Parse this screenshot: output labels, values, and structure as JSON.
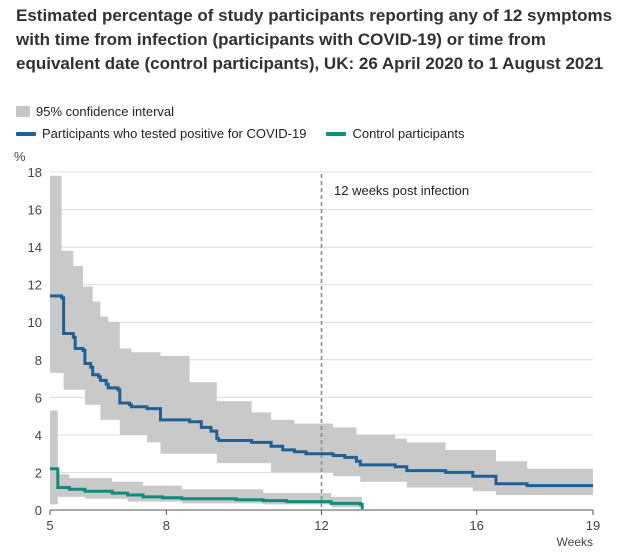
{
  "title": "Estimated percentage of study participants reporting any of 12 symptoms with time from infection (participants with COVID-19) or time from equivalent date (control participants), UK: 26 April 2020 to 1 August 2021",
  "colors": {
    "covid": "#206095",
    "control": "#118c7b",
    "ci": "#c6c6c6",
    "grid": "#dcdcdc",
    "ref": "#8c8c8c"
  },
  "chart_data": {
    "type": "line",
    "title": "Estimated percentage of study participants reporting any of 12 symptoms with time from infection (participants with COVID-19) or time from equivalent date (control participants), UK: 26 April 2020 to 1 August 2021",
    "ylabel": "%",
    "xlabel": "Weeks",
    "xlim": [
      5,
      19
    ],
    "ylim": [
      0,
      18
    ],
    "xticks": [
      5,
      8,
      12,
      16,
      19
    ],
    "yticks": [
      0,
      2,
      4,
      6,
      8,
      10,
      12,
      14,
      16,
      18
    ],
    "grid": true,
    "legend_position": "top-left",
    "legend": {
      "ci_label": "95% confidence interval",
      "covid_label": "Participants who tested positive for COVID-19",
      "control_label": "Control participants"
    },
    "annotation": {
      "x": 12,
      "text": "12 weeks post infection"
    },
    "series": [
      {
        "name": "Participants who tested positive for COVID-19",
        "step": true,
        "points": [
          [
            5.0,
            11.4
          ],
          [
            5.3,
            11.3
          ],
          [
            5.35,
            9.4
          ],
          [
            5.6,
            9.2
          ],
          [
            5.65,
            8.6
          ],
          [
            5.85,
            8.5
          ],
          [
            5.9,
            7.8
          ],
          [
            6.05,
            7.6
          ],
          [
            6.1,
            7.2
          ],
          [
            6.25,
            7.1
          ],
          [
            6.3,
            6.9
          ],
          [
            6.45,
            6.7
          ],
          [
            6.5,
            6.5
          ],
          [
            6.75,
            6.4
          ],
          [
            6.8,
            5.7
          ],
          [
            7.05,
            5.6
          ],
          [
            7.1,
            5.5
          ],
          [
            7.5,
            5.4
          ],
          [
            7.85,
            4.8
          ],
          [
            8.6,
            4.7
          ],
          [
            8.9,
            4.4
          ],
          [
            9.15,
            4.2
          ],
          [
            9.3,
            3.8
          ],
          [
            9.35,
            3.7
          ],
          [
            10.2,
            3.6
          ],
          [
            10.7,
            3.4
          ],
          [
            11.0,
            3.2
          ],
          [
            11.3,
            3.1
          ],
          [
            11.6,
            3.0
          ],
          [
            12.3,
            2.9
          ],
          [
            12.6,
            2.8
          ],
          [
            12.9,
            2.6
          ],
          [
            13.0,
            2.4
          ],
          [
            13.9,
            2.3
          ],
          [
            14.2,
            2.1
          ],
          [
            15.2,
            2.0
          ],
          [
            15.9,
            1.8
          ],
          [
            16.5,
            1.4
          ],
          [
            17.3,
            1.3
          ],
          [
            19.0,
            1.3
          ]
        ],
        "ci_lower": [
          [
            5.0,
            7.3
          ],
          [
            5.35,
            6.4
          ],
          [
            5.9,
            5.6
          ],
          [
            6.3,
            4.8
          ],
          [
            6.8,
            4.0
          ],
          [
            7.5,
            3.6
          ],
          [
            7.85,
            3.0
          ],
          [
            9.3,
            2.5
          ],
          [
            10.7,
            2.0
          ],
          [
            11.6,
            2.0
          ],
          [
            12.3,
            1.8
          ],
          [
            13.0,
            1.5
          ],
          [
            14.2,
            1.2
          ],
          [
            15.9,
            1.0
          ],
          [
            16.5,
            0.8
          ],
          [
            19.0,
            0.8
          ]
        ],
        "ci_upper": [
          [
            5.0,
            17.8
          ],
          [
            5.3,
            13.8
          ],
          [
            5.6,
            13.0
          ],
          [
            5.85,
            11.9
          ],
          [
            6.1,
            11.1
          ],
          [
            6.3,
            10.3
          ],
          [
            6.5,
            10.0
          ],
          [
            6.8,
            8.6
          ],
          [
            7.1,
            8.4
          ],
          [
            7.85,
            8.2
          ],
          [
            8.6,
            6.8
          ],
          [
            9.3,
            5.8
          ],
          [
            10.2,
            5.2
          ],
          [
            10.7,
            4.8
          ],
          [
            11.3,
            4.6
          ],
          [
            12.3,
            4.4
          ],
          [
            12.9,
            4.0
          ],
          [
            13.9,
            3.8
          ],
          [
            14.2,
            3.6
          ],
          [
            15.2,
            3.2
          ],
          [
            16.5,
            2.6
          ],
          [
            17.3,
            2.2
          ],
          [
            19.0,
            2.2
          ]
        ]
      },
      {
        "name": "Control participants",
        "step": true,
        "points": [
          [
            5.0,
            2.2
          ],
          [
            5.15,
            2.2
          ],
          [
            5.2,
            1.2
          ],
          [
            5.5,
            1.1
          ],
          [
            5.9,
            1.0
          ],
          [
            6.6,
            0.9
          ],
          [
            7.0,
            0.8
          ],
          [
            7.4,
            0.7
          ],
          [
            7.9,
            0.65
          ],
          [
            8.4,
            0.6
          ],
          [
            9.8,
            0.55
          ],
          [
            10.5,
            0.5
          ],
          [
            11.1,
            0.45
          ],
          [
            12.2,
            0.45
          ],
          [
            12.25,
            0.35
          ],
          [
            13.0,
            0.3
          ],
          [
            13.05,
            0.05
          ]
        ],
        "ci_lower": [
          [
            5.0,
            0.3
          ],
          [
            5.2,
            0.7
          ],
          [
            5.9,
            0.6
          ],
          [
            7.0,
            0.45
          ],
          [
            8.4,
            0.35
          ],
          [
            10.5,
            0.3
          ],
          [
            12.25,
            0.15
          ],
          [
            13.05,
            0.0
          ]
        ],
        "ci_upper": [
          [
            5.0,
            5.3
          ],
          [
            5.2,
            1.9
          ],
          [
            5.5,
            1.7
          ],
          [
            6.6,
            1.5
          ],
          [
            7.4,
            1.3
          ],
          [
            8.4,
            1.1
          ],
          [
            10.5,
            0.9
          ],
          [
            12.25,
            0.7
          ],
          [
            13.05,
            0.1
          ]
        ]
      }
    ]
  }
}
